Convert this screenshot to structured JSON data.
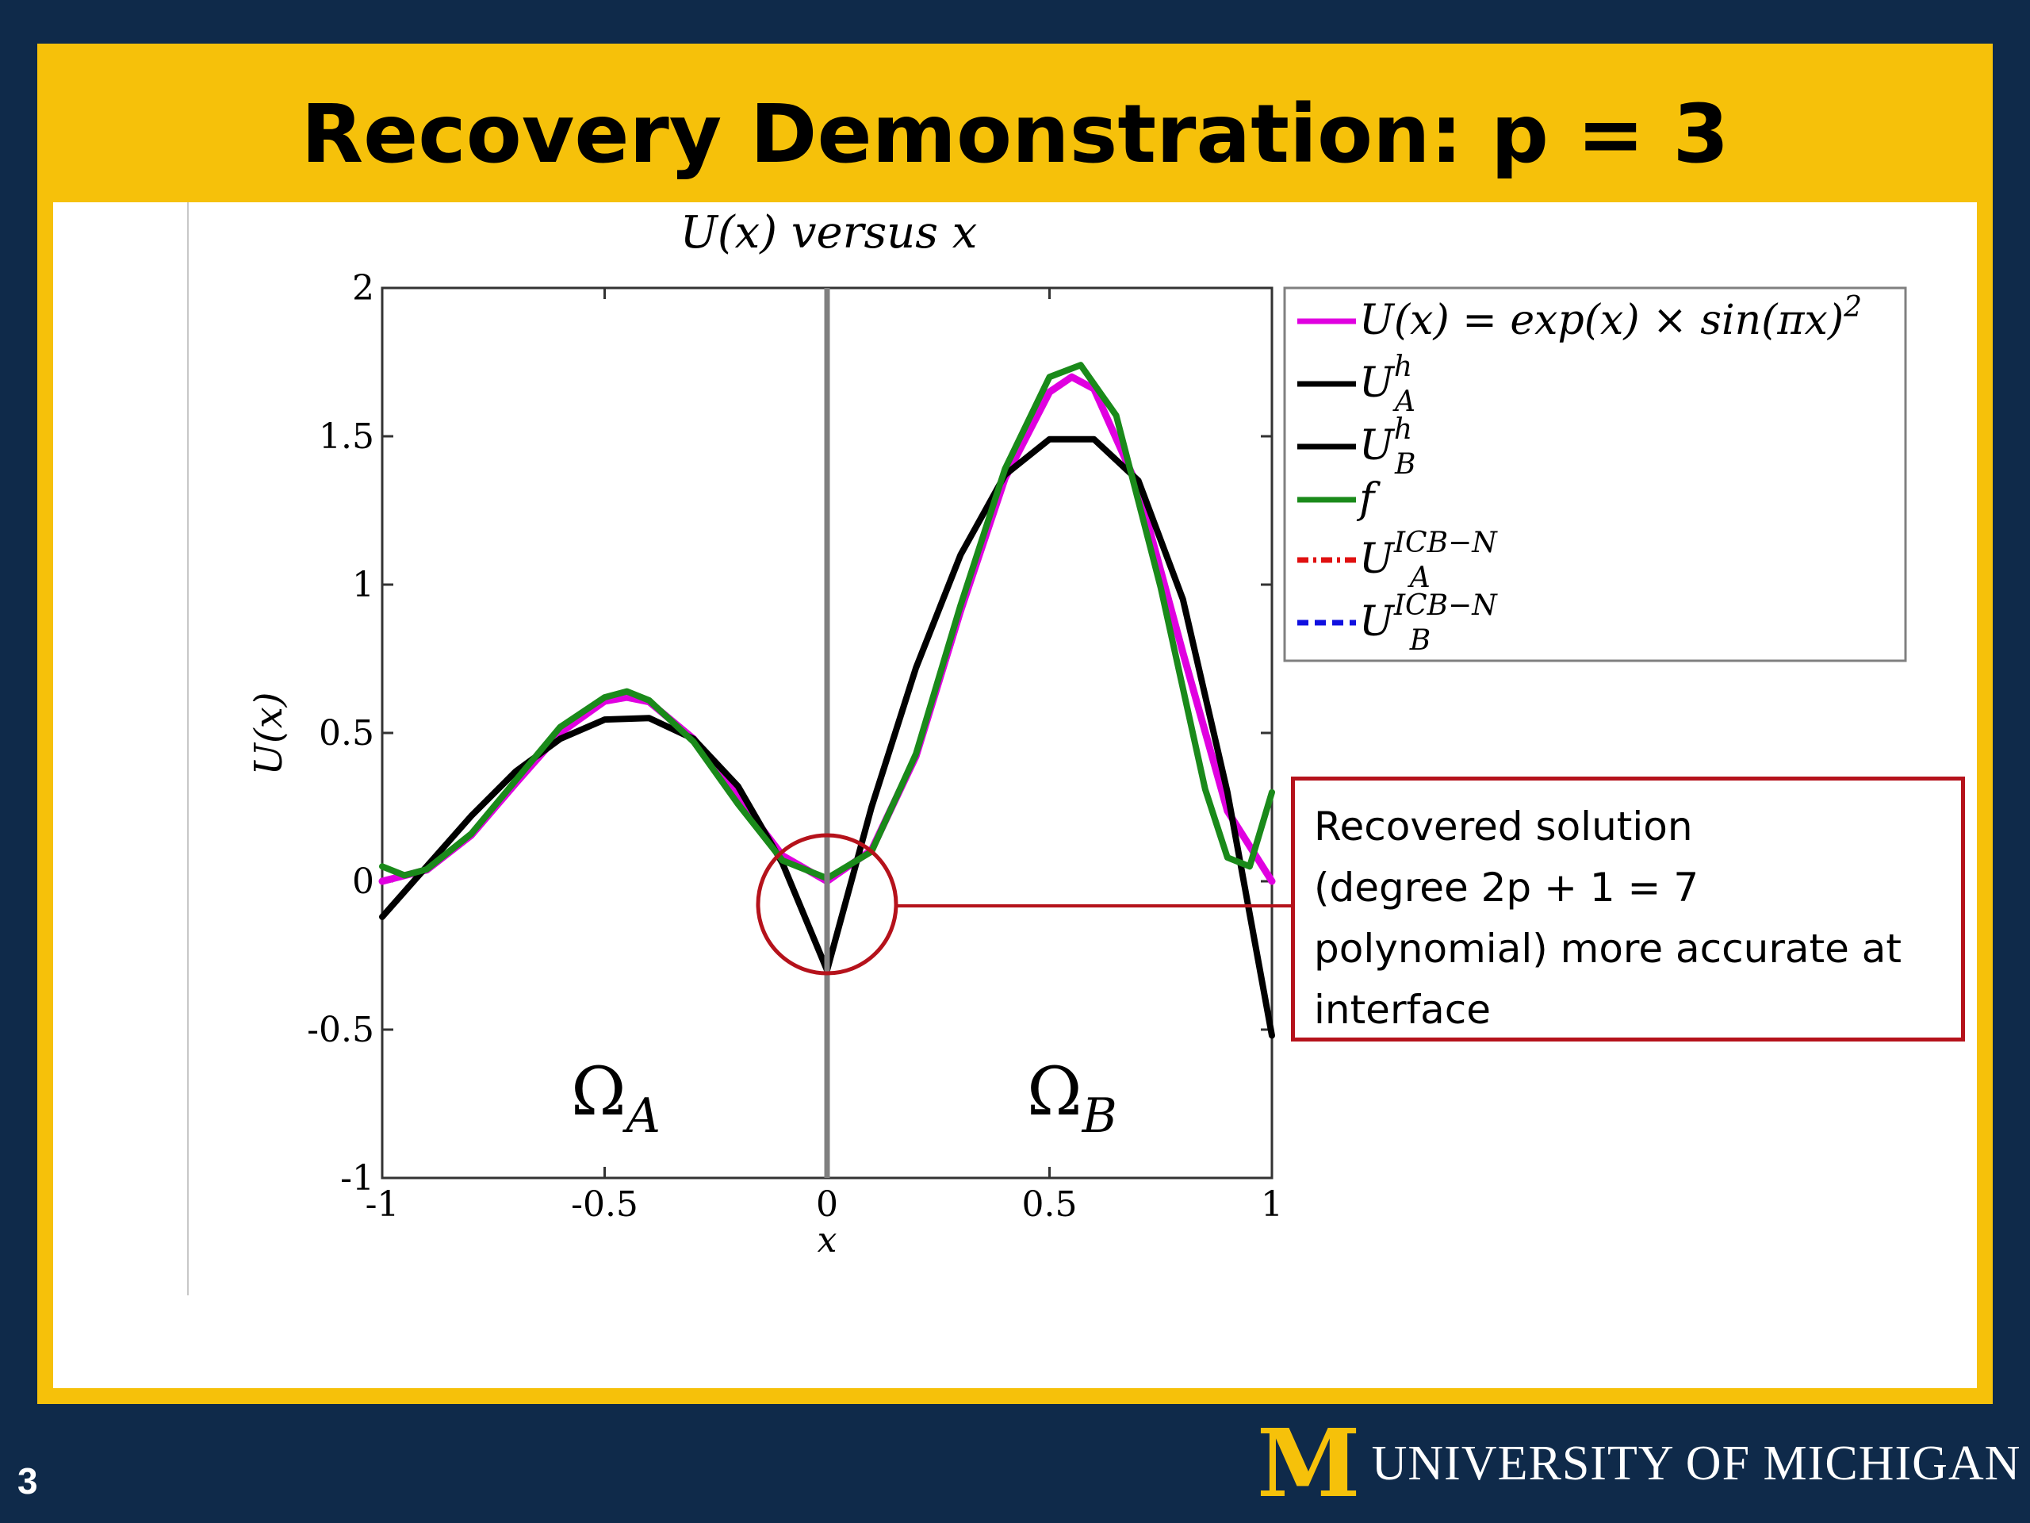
{
  "slide": {
    "title": "Recovery Demonstration: p = 3",
    "page_number": "3",
    "logo_mark": "M",
    "logo_text": "UNIVERSITY OF MICHIGAN",
    "callout_lines": [
      "Recovered solution",
      "(degree 2p + 1 = 7",
      "polynomial) more accurate at",
      "interface"
    ],
    "domain_labels": [
      "Ω_A",
      "Ω_B"
    ],
    "colors": {
      "navy": "#0f2a4a",
      "maize": "#f6c10a",
      "callout_border": "#b5121b"
    }
  },
  "chart_data": {
    "type": "line",
    "title": "U(x) versus x",
    "xlabel": "x",
    "ylabel": "U(x)",
    "xlim": [
      -1,
      1
    ],
    "ylim": [
      -1,
      2
    ],
    "xticks": [
      "-1",
      "-0.5",
      "0",
      "0.5",
      "1"
    ],
    "yticks": [
      "-1",
      "-0.5",
      "0",
      "0.5",
      "1",
      "1.5",
      "2"
    ],
    "xtick_values": [
      -1,
      -0.5,
      0,
      0.5,
      1
    ],
    "ytick_values": [
      -1,
      -0.5,
      0,
      0.5,
      1,
      1.5,
      2
    ],
    "interface_x": 0,
    "legend_position": "top-right",
    "series": [
      {
        "name": "U(x) = exp(x) × sin(πx)²",
        "color": "#e000e0",
        "style": "solid",
        "x": [
          -1,
          -0.9,
          -0.8,
          -0.7,
          -0.6,
          -0.5,
          -0.45,
          -0.4,
          -0.3,
          -0.2,
          -0.1,
          0,
          0.1,
          0.2,
          0.3,
          0.4,
          0.5,
          0.55,
          0.6,
          0.7,
          0.8,
          0.9,
          1
        ],
        "y": [
          0,
          0.038,
          0.155,
          0.33,
          0.5,
          0.607,
          0.62,
          0.605,
          0.48,
          0.283,
          0.086,
          0,
          0.105,
          0.422,
          0.911,
          1.358,
          1.649,
          1.7,
          1.66,
          1.324,
          0.77,
          0.237,
          0
        ]
      },
      {
        "name": "U_A^h",
        "color": "#000000",
        "style": "solid",
        "x": [
          -1,
          -0.9,
          -0.8,
          -0.7,
          -0.6,
          -0.5,
          -0.4,
          -0.3,
          -0.2,
          -0.1,
          0
        ],
        "y": [
          -0.12,
          0.05,
          0.22,
          0.37,
          0.48,
          0.545,
          0.55,
          0.48,
          0.32,
          0.06,
          -0.3
        ]
      },
      {
        "name": "U_B^h",
        "color": "#000000",
        "style": "solid",
        "x": [
          0,
          0.1,
          0.2,
          0.3,
          0.4,
          0.5,
          0.6,
          0.7,
          0.8,
          0.9,
          1
        ],
        "y": [
          -0.3,
          0.25,
          0.72,
          1.1,
          1.37,
          1.49,
          1.49,
          1.35,
          0.95,
          0.3,
          -0.52
        ]
      },
      {
        "name": "f",
        "color": "#1a8a1a",
        "style": "solid",
        "x": [
          -1,
          -0.95,
          -0.9,
          -0.8,
          -0.7,
          -0.6,
          -0.5,
          -0.45,
          -0.4,
          -0.3,
          -0.2,
          -0.1,
          0,
          0.1,
          0.2,
          0.3,
          0.4,
          0.5,
          0.57,
          0.65,
          0.75,
          0.85,
          0.9,
          0.95,
          1
        ],
        "y": [
          0.05,
          0.02,
          0.04,
          0.16,
          0.34,
          0.52,
          0.62,
          0.64,
          0.61,
          0.47,
          0.26,
          0.07,
          0.01,
          0.1,
          0.43,
          0.93,
          1.39,
          1.7,
          1.74,
          1.57,
          0.99,
          0.31,
          0.08,
          0.05,
          0.3
        ]
      },
      {
        "name": "U_A^{ICB-N}",
        "color": "#e01010",
        "style": "dashdot",
        "x": [],
        "y": []
      },
      {
        "name": "U_B^{ICB-N}",
        "color": "#1010e0",
        "style": "dashed",
        "x": [],
        "y": []
      }
    ]
  }
}
